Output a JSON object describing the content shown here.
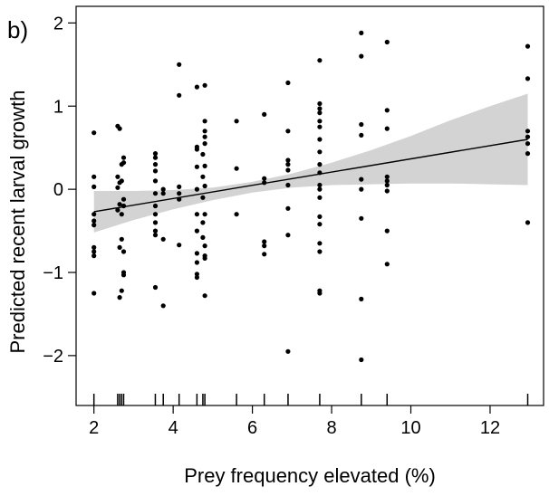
{
  "panel_label": "b)",
  "colors": {
    "band": "#d3d3d3",
    "line": "#000000",
    "points": "#000000"
  },
  "chart_data": {
    "type": "scatter",
    "title": "",
    "xlabel": "Prey frequency elevated (%)",
    "ylabel": "Predicted recent larval growth",
    "xlim": [
      1.55,
      13.35
    ],
    "ylim": [
      -2.6,
      2.2
    ],
    "xticks": [
      2,
      4,
      6,
      8,
      10,
      12
    ],
    "yticks": [
      -2,
      -1,
      0,
      1,
      2
    ],
    "x_tick_labels": [
      "2",
      "4",
      "6",
      "8",
      "10",
      "12"
    ],
    "y_tick_labels": [
      "−2",
      "−1",
      "0",
      "1",
      "2"
    ],
    "rug_x": [
      2.0,
      2.6,
      2.65,
      2.7,
      2.75,
      3.55,
      3.75,
      4.15,
      4.6,
      4.75,
      4.8,
      5.6,
      6.3,
      6.9,
      7.7,
      8.75,
      9.4,
      12.95
    ],
    "fit": {
      "x": [
        2.0,
        12.95
      ],
      "y": [
        -0.27,
        0.6
      ]
    },
    "confidence_band": {
      "x": [
        2.0,
        3.0,
        4.0,
        5.0,
        6.0,
        7.0,
        8.0,
        9.0,
        10.0,
        11.0,
        12.0,
        12.95
      ],
      "lower": [
        -0.52,
        -0.37,
        -0.24,
        -0.13,
        -0.04,
        0.02,
        0.05,
        0.06,
        0.07,
        0.07,
        0.06,
        0.05
      ],
      "upper": [
        -0.02,
        -0.02,
        -0.01,
        0.02,
        0.09,
        0.19,
        0.32,
        0.47,
        0.64,
        0.83,
        1.0,
        1.15
      ]
    },
    "points": [
      [
        2.0,
        0.68
      ],
      [
        2.0,
        0.15
      ],
      [
        2.0,
        0.03
      ],
      [
        2.0,
        -0.3
      ],
      [
        2.0,
        -0.38
      ],
      [
        2.0,
        -0.43
      ],
      [
        2.0,
        -0.7
      ],
      [
        2.0,
        -0.75
      ],
      [
        2.0,
        -0.8
      ],
      [
        2.0,
        -1.25
      ],
      [
        2.6,
        0.76
      ],
      [
        2.6,
        0.15
      ],
      [
        2.6,
        0.02
      ],
      [
        2.6,
        -0.25
      ],
      [
        2.65,
        0.73
      ],
      [
        2.65,
        0.08
      ],
      [
        2.65,
        -0.18
      ],
      [
        2.65,
        -0.7
      ],
      [
        2.65,
        -1.3
      ],
      [
        2.7,
        0.3
      ],
      [
        2.7,
        0.1
      ],
      [
        2.7,
        -0.3
      ],
      [
        2.7,
        -0.6
      ],
      [
        2.7,
        -1.22
      ],
      [
        2.75,
        0.38
      ],
      [
        2.75,
        0.32
      ],
      [
        2.75,
        -0.12
      ],
      [
        2.75,
        -0.2
      ],
      [
        2.75,
        -0.75
      ],
      [
        2.75,
        -1.0
      ],
      [
        2.75,
        -1.03
      ],
      [
        3.55,
        0.43
      ],
      [
        3.55,
        0.38
      ],
      [
        3.55,
        0.3
      ],
      [
        3.55,
        0.22
      ],
      [
        3.55,
        0.1
      ],
      [
        3.55,
        -0.05
      ],
      [
        3.55,
        -0.2
      ],
      [
        3.55,
        -0.3
      ],
      [
        3.55,
        -0.4
      ],
      [
        3.55,
        -0.5
      ],
      [
        3.55,
        -0.55
      ],
      [
        3.55,
        -1.18
      ],
      [
        3.75,
        0.0
      ],
      [
        3.75,
        -0.05
      ],
      [
        3.75,
        -0.6
      ],
      [
        3.75,
        -1.4
      ],
      [
        4.15,
        1.5
      ],
      [
        4.15,
        1.13
      ],
      [
        4.15,
        0.03
      ],
      [
        4.15,
        -0.05
      ],
      [
        4.15,
        -0.12
      ],
      [
        4.15,
        -0.67
      ],
      [
        4.6,
        1.23
      ],
      [
        4.6,
        0.51
      ],
      [
        4.6,
        0.48
      ],
      [
        4.6,
        0.27
      ],
      [
        4.6,
        0.0
      ],
      [
        4.6,
        -0.3
      ],
      [
        4.6,
        -0.5
      ],
      [
        4.6,
        -0.77
      ],
      [
        4.6,
        -0.88
      ],
      [
        4.6,
        -1.02
      ],
      [
        4.6,
        -1.06
      ],
      [
        4.75,
        0.42
      ],
      [
        4.75,
        0.15
      ],
      [
        4.75,
        -0.1
      ],
      [
        4.75,
        -0.4
      ],
      [
        4.75,
        -0.58
      ],
      [
        4.8,
        1.25
      ],
      [
        4.8,
        0.82
      ],
      [
        4.8,
        0.7
      ],
      [
        4.8,
        0.63
      ],
      [
        4.8,
        0.55
      ],
      [
        4.8,
        0.28
      ],
      [
        4.8,
        0.04
      ],
      [
        4.8,
        -0.3
      ],
      [
        4.8,
        -0.68
      ],
      [
        4.8,
        -0.8
      ],
      [
        4.8,
        -0.83
      ],
      [
        4.8,
        -1.28
      ],
      [
        5.6,
        0.82
      ],
      [
        5.6,
        0.25
      ],
      [
        5.6,
        -0.3
      ],
      [
        6.3,
        0.9
      ],
      [
        6.3,
        0.13
      ],
      [
        6.3,
        0.08
      ],
      [
        6.3,
        -0.63
      ],
      [
        6.3,
        -0.68
      ],
      [
        6.3,
        -0.78
      ],
      [
        6.9,
        1.28
      ],
      [
        6.9,
        0.7
      ],
      [
        6.9,
        0.35
      ],
      [
        6.9,
        0.3
      ],
      [
        6.9,
        0.23
      ],
      [
        6.9,
        0.05
      ],
      [
        6.9,
        -0.23
      ],
      [
        6.9,
        -0.55
      ],
      [
        6.9,
        -1.95
      ],
      [
        7.7,
        1.55
      ],
      [
        7.7,
        1.03
      ],
      [
        7.7,
        0.97
      ],
      [
        7.7,
        0.92
      ],
      [
        7.7,
        0.82
      ],
      [
        7.7,
        0.75
      ],
      [
        7.7,
        0.6
      ],
      [
        7.7,
        0.45
      ],
      [
        7.7,
        0.3
      ],
      [
        7.7,
        0.2
      ],
      [
        7.7,
        0.05
      ],
      [
        7.7,
        0.0
      ],
      [
        7.7,
        -0.1
      ],
      [
        7.7,
        -0.33
      ],
      [
        7.7,
        -0.42
      ],
      [
        7.7,
        -0.65
      ],
      [
        7.7,
        -0.75
      ],
      [
        7.7,
        -1.22
      ],
      [
        7.7,
        -1.25
      ],
      [
        8.75,
        1.88
      ],
      [
        8.75,
        1.6
      ],
      [
        8.75,
        0.78
      ],
      [
        8.75,
        0.65
      ],
      [
        8.75,
        0.12
      ],
      [
        8.75,
        0.0
      ],
      [
        8.75,
        -0.35
      ],
      [
        8.75,
        -1.32
      ],
      [
        8.75,
        -2.05
      ],
      [
        9.4,
        1.77
      ],
      [
        9.4,
        0.95
      ],
      [
        9.4,
        0.73
      ],
      [
        9.4,
        0.15
      ],
      [
        9.4,
        0.1
      ],
      [
        9.4,
        0.05
      ],
      [
        9.4,
        -0.02
      ],
      [
        9.4,
        -0.5
      ],
      [
        9.4,
        -0.9
      ],
      [
        12.95,
        1.72
      ],
      [
        12.95,
        1.33
      ],
      [
        12.95,
        0.7
      ],
      [
        12.95,
        0.63
      ],
      [
        12.95,
        0.55
      ],
      [
        12.95,
        0.43
      ],
      [
        12.95,
        -0.4
      ]
    ]
  }
}
